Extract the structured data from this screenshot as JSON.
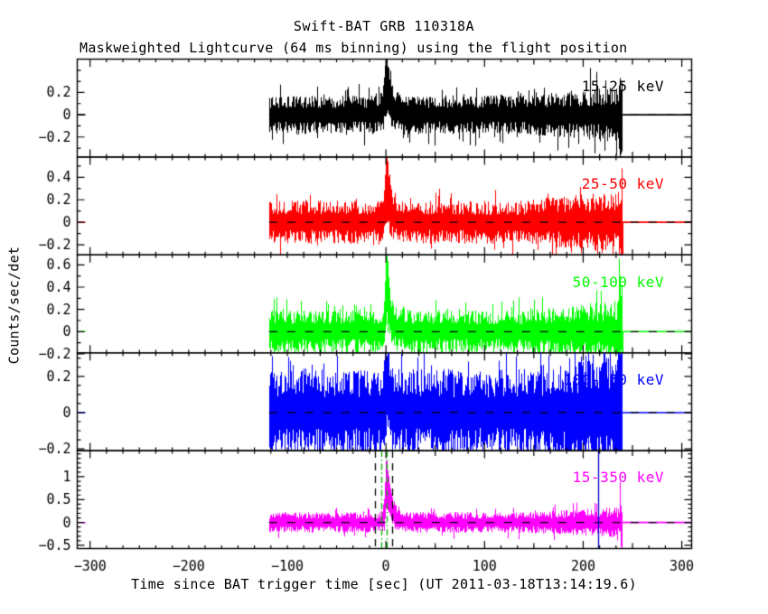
{
  "header": {
    "title": "Swift-BAT GRB 110318A",
    "subtitle": "Maskweighted Lightcurve (64 ms binning) using the flight position"
  },
  "chart_data": {
    "type": "line",
    "title": "Swift-BAT GRB 110318A",
    "subtitle": "Maskweighted Lightcurve (64 ms binning) using the flight position",
    "xlabel": "Time since BAT trigger time [sec] (UT 2011-03-18T13:14:19.6)",
    "ylabel": "Counts/sec/det",
    "layout": {
      "stacked_panels": 5,
      "shared_x": true,
      "grid": false,
      "legend": "per-panel inline label"
    },
    "x_axis": {
      "range": [
        -313,
        310
      ],
      "ticks": [
        -300,
        -200,
        -100,
        0,
        100,
        200,
        300
      ],
      "minor_step": 16.667
    },
    "data_start_sec": -118.5,
    "data_end_sec": 240,
    "burst_time_sec": 0.5,
    "panels": [
      {
        "label": "15-25 keV",
        "color": "#000000",
        "ylim": [
          -0.38,
          0.5
        ],
        "yticks": [
          -0.2,
          0,
          0.2
        ],
        "y_minor_step": 0.1,
        "noise_sigma": 0.05,
        "burst": {
          "t0": 0.5,
          "amplitude": 0.4,
          "rise": 2.0,
          "decay": 4.5
        },
        "spikes": [
          {
            "t": 207,
            "v": 0.42
          },
          {
            "t": 238,
            "v": 0.33
          },
          {
            "t": 239.5,
            "v": -0.33
          }
        ],
        "zero_line_after_end": "solid"
      },
      {
        "label": "25-50 keV",
        "color": "#ff0000",
        "ylim": [
          -0.29,
          0.58
        ],
        "yticks": [
          -0.2,
          0,
          0.2,
          0.4
        ],
        "y_minor_step": 0.1,
        "noise_sigma": 0.055,
        "burst": {
          "t0": 0.5,
          "amplitude": 0.46,
          "rise": 1.5,
          "decay": 4.0
        },
        "spikes": [
          {
            "t": 239,
            "v": 0.48
          },
          {
            "t": 240,
            "v": -0.28
          }
        ],
        "zero_line_after_end": "dashed-over-color"
      },
      {
        "label": "50-100 keV",
        "color": "#00ff00",
        "ylim": [
          -0.19,
          0.69
        ],
        "yticks": [
          -0.2,
          0,
          0.2,
          0.4,
          0.6
        ],
        "y_minor_step": 0.1,
        "noise_sigma": 0.055,
        "burst": {
          "t0": 0.5,
          "amplitude": 0.62,
          "rise": 1.2,
          "decay": 3.5
        },
        "spikes": [
          {
            "t": 238,
            "v": 0.5
          },
          {
            "t": 239.5,
            "v": 0.42
          },
          {
            "t": 240,
            "v": -0.19
          }
        ],
        "zero_line_after_end": "dashed-over-color"
      },
      {
        "label": "100-350 keV",
        "color": "#0000ff",
        "ylim": [
          -0.21,
          0.33
        ],
        "yticks": [
          -0.2,
          0,
          0.2
        ],
        "y_minor_step": 0.05,
        "noise_sigma": 0.07,
        "burst": {
          "t0": 0.5,
          "amplitude": 0.22,
          "rise": 1.0,
          "decay": 3.0
        },
        "spikes": [
          {
            "t": 186,
            "v": 0.3
          },
          {
            "t": 192,
            "v": 0.33
          },
          {
            "t": 196,
            "v": 0.28
          },
          {
            "t": 226,
            "v": 0.3
          },
          {
            "t": 238,
            "v": 0.32
          },
          {
            "t": 239.5,
            "v": -0.3
          }
        ],
        "zero_line_after_end": "solid"
      },
      {
        "label": "15-350 keV",
        "color": "#ff00ff",
        "ylim": [
          -0.57,
          1.57
        ],
        "yticks": [
          -0.5,
          0,
          0.5,
          1
        ],
        "y_minor_step": 0.1,
        "noise_sigma": 0.065,
        "burst": {
          "t0": 0.5,
          "amplitude": 1.28,
          "rise": 1.3,
          "decay": 4.5
        },
        "spikes": [
          {
            "t": 238,
            "v": 0.88
          },
          {
            "t": 239.5,
            "v": -0.32
          }
        ],
        "zero_line_after_end": "dashed-over-color",
        "vlines": [
          {
            "t": -11,
            "style": "dashed",
            "color": "#000000"
          },
          {
            "t": 6.5,
            "style": "dashed",
            "color": "#000000"
          },
          {
            "t": -4,
            "style": "dashdot",
            "color": "#00b400"
          },
          {
            "t": 1.5,
            "style": "dashdot",
            "color": "#00b400"
          },
          {
            "t": 216,
            "style": "solid",
            "color": "#0000cc"
          }
        ]
      }
    ]
  }
}
